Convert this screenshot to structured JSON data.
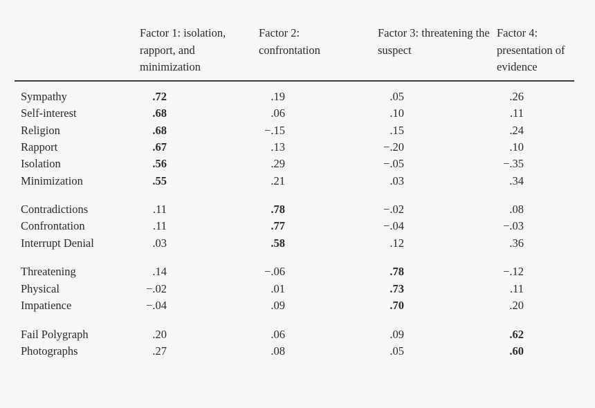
{
  "header": {
    "factor1": "Factor 1: isolation, rapport, and minimization",
    "factor2": "Factor 2: confrontation",
    "factor3": "Factor 3: threatening the suspect",
    "factor4": "Factor 4: presentation of evidence"
  },
  "rows": [
    {
      "label": "Sympathy",
      "values": [
        ".72",
        ".19",
        ".05",
        ".26"
      ],
      "bold": 0
    },
    {
      "label": "Self-interest",
      "values": [
        ".68",
        ".06",
        ".10",
        ".11"
      ],
      "bold": 0
    },
    {
      "label": "Religion",
      "values": [
        ".68",
        "−.15",
        ".15",
        ".24"
      ],
      "bold": 0
    },
    {
      "label": "Rapport",
      "values": [
        ".67",
        ".13",
        "−.20",
        ".10"
      ],
      "bold": 0
    },
    {
      "label": "Isolation",
      "values": [
        ".56",
        ".29",
        "−.05",
        "−.35"
      ],
      "bold": 0
    },
    {
      "label": "Minimization",
      "values": [
        ".55",
        ".21",
        ".03",
        ".34"
      ],
      "bold": 0
    },
    {
      "label": "Contradictions",
      "values": [
        ".11",
        ".78",
        "−.02",
        ".08"
      ],
      "bold": 1
    },
    {
      "label": "Confrontation",
      "values": [
        ".11",
        ".77",
        "−.04",
        "−.03"
      ],
      "bold": 1
    },
    {
      "label": "Interrupt Denial",
      "values": [
        ".03",
        ".58",
        ".12",
        ".36"
      ],
      "bold": 1
    },
    {
      "label": "Threatening",
      "values": [
        ".14",
        "−.06",
        ".78",
        "−.12"
      ],
      "bold": 2
    },
    {
      "label": "Physical",
      "values": [
        "−.02",
        ".01",
        ".73",
        ".11"
      ],
      "bold": 2
    },
    {
      "label": "Impatience",
      "values": [
        "−.04",
        ".09",
        ".70",
        ".20"
      ],
      "bold": 2
    },
    {
      "label": "Fail Polygraph",
      "values": [
        ".20",
        ".06",
        ".09",
        ".62"
      ],
      "bold": 3
    },
    {
      "label": "Photographs",
      "values": [
        ".27",
        ".08",
        ".05",
        ".60"
      ],
      "bold": 3
    }
  ]
}
